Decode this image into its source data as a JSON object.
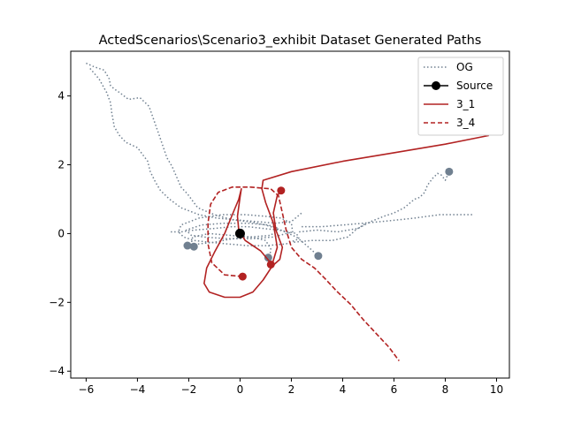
{
  "chart_data": {
    "type": "line",
    "title": "ActedScenarios\\Scenario3_exhibit Dataset Generated Paths",
    "xlabel": "",
    "ylabel": "",
    "xlim": [
      -6.6,
      10.5
    ],
    "ylim": [
      -4.2,
      5.3
    ],
    "xticks": [
      -6,
      -4,
      -2,
      0,
      2,
      4,
      6,
      8,
      10
    ],
    "yticks": [
      -4,
      -2,
      0,
      2,
      4
    ],
    "grid": false,
    "legend_position": "top-right",
    "colors": {
      "og": "#708090",
      "source": "#000000",
      "generated": "#b22222"
    },
    "series": [
      {
        "name": "OG",
        "style": "dotted",
        "paths": [
          [
            [
              -6.0,
              4.95
            ],
            [
              -5.7,
              4.85
            ],
            [
              -5.3,
              4.75
            ],
            [
              -5.1,
              4.5
            ],
            [
              -5.05,
              4.3
            ],
            [
              -4.9,
              4.2
            ],
            [
              -4.7,
              4.1
            ],
            [
              -4.35,
              3.9
            ],
            [
              -3.9,
              3.95
            ],
            [
              -3.55,
              3.7
            ],
            [
              -3.15,
              2.85
            ],
            [
              -2.85,
              2.2
            ],
            [
              -2.65,
              1.95
            ],
            [
              -2.3,
              1.35
            ],
            [
              -2.05,
              1.15
            ],
            [
              -1.65,
              0.75
            ],
            [
              -1.0,
              0.55
            ],
            [
              -0.3,
              0.4
            ],
            [
              0.3,
              0.35
            ],
            [
              1.0,
              0.25
            ],
            [
              1.6,
              0.1
            ],
            [
              2.2,
              -0.1
            ],
            [
              2.6,
              -0.35
            ],
            [
              3.05,
              -0.65
            ]
          ],
          [
            [
              -5.85,
              4.8
            ],
            [
              -5.5,
              4.5
            ],
            [
              -5.2,
              4.1
            ],
            [
              -5.05,
              3.8
            ],
            [
              -5.0,
              3.5
            ],
            [
              -4.9,
              3.1
            ],
            [
              -4.7,
              2.85
            ],
            [
              -4.45,
              2.65
            ],
            [
              -4.0,
              2.5
            ],
            [
              -3.6,
              2.1
            ],
            [
              -3.5,
              1.8
            ],
            [
              -3.3,
              1.5
            ],
            [
              -3.1,
              1.25
            ],
            [
              -2.75,
              1.0
            ],
            [
              -2.3,
              0.75
            ],
            [
              -1.6,
              0.55
            ],
            [
              -0.9,
              0.45
            ],
            [
              -0.2,
              0.4
            ],
            [
              0.6,
              0.35
            ],
            [
              1.4,
              0.3
            ],
            [
              2.0,
              0.35
            ],
            [
              2.4,
              0.6
            ]
          ],
          [
            [
              -2.7,
              0.05
            ],
            [
              -2.3,
              0.05
            ],
            [
              -1.8,
              0.1
            ],
            [
              -1.0,
              0.15
            ],
            [
              -0.3,
              0.2
            ],
            [
              0.3,
              0.2
            ],
            [
              0.9,
              0.15
            ],
            [
              1.5,
              0.1
            ],
            [
              1.9,
              0.05
            ],
            [
              2.2,
              0.0
            ],
            [
              2.3,
              -0.15
            ],
            [
              1.8,
              -0.3
            ],
            [
              1.0,
              -0.35
            ],
            [
              0.3,
              -0.35
            ],
            [
              -0.5,
              -0.3
            ],
            [
              -1.2,
              -0.25
            ],
            [
              -1.8,
              -0.2
            ],
            [
              -2.2,
              -0.1
            ],
            [
              -2.4,
              0.05
            ],
            [
              -2.3,
              0.25
            ],
            [
              -1.6,
              0.45
            ],
            [
              -0.7,
              0.55
            ],
            [
              0.2,
              0.55
            ],
            [
              1.0,
              0.5
            ],
            [
              1.6,
              0.45
            ],
            [
              2.0,
              0.3
            ],
            [
              2.05,
              0.05
            ],
            [
              1.3,
              -0.1
            ],
            [
              0.4,
              -0.15
            ],
            [
              -0.5,
              -0.15
            ],
            [
              -1.4,
              -0.1
            ],
            [
              -1.9,
              -0.05
            ],
            [
              -2.1,
              0.1
            ],
            [
              -1.5,
              0.25
            ],
            [
              -0.6,
              0.3
            ],
            [
              0.3,
              0.3
            ],
            [
              1.1,
              0.25
            ],
            [
              1.5,
              0.15
            ],
            [
              1.2,
              -0.05
            ],
            [
              0.4,
              -0.1
            ],
            [
              -0.4,
              -0.05
            ],
            [
              -1.2,
              0.0
            ],
            [
              -1.85,
              -0.1
            ],
            [
              -1.9,
              -0.3
            ],
            [
              -1.8,
              -0.38
            ]
          ],
          [
            [
              -2.05,
              -0.35
            ],
            [
              -1.6,
              -0.3
            ],
            [
              -1.0,
              -0.25
            ],
            [
              -0.3,
              -0.15
            ],
            [
              0.4,
              -0.1
            ],
            [
              1.0,
              -0.2
            ],
            [
              1.2,
              -0.45
            ],
            [
              1.15,
              -0.7
            ]
          ],
          [
            [
              2.3,
              0.05
            ],
            [
              3.0,
              0.1
            ],
            [
              3.8,
              0.05
            ],
            [
              4.6,
              0.15
            ],
            [
              5.1,
              0.35
            ],
            [
              5.6,
              0.5
            ],
            [
              6.0,
              0.6
            ],
            [
              6.4,
              0.75
            ],
            [
              6.8,
              1.0
            ],
            [
              7.0,
              1.05
            ],
            [
              7.2,
              1.2
            ],
            [
              7.3,
              1.4
            ],
            [
              7.5,
              1.6
            ],
            [
              7.7,
              1.75
            ],
            [
              7.85,
              1.7
            ],
            [
              8.0,
              1.55
            ],
            [
              8.15,
              1.8
            ]
          ],
          [
            [
              2.4,
              0.2
            ],
            [
              3.2,
              0.2
            ],
            [
              4.0,
              0.25
            ],
            [
              4.8,
              0.3
            ],
            [
              5.5,
              0.35
            ],
            [
              6.2,
              0.4
            ],
            [
              6.8,
              0.45
            ],
            [
              7.3,
              0.5
            ],
            [
              7.8,
              0.55
            ],
            [
              8.4,
              0.55
            ],
            [
              9.1,
              0.55
            ]
          ],
          [
            [
              2.1,
              -0.25
            ],
            [
              2.8,
              -0.2
            ],
            [
              3.6,
              -0.2
            ],
            [
              4.2,
              -0.1
            ],
            [
              4.5,
              0.1
            ],
            [
              4.9,
              0.3
            ]
          ]
        ],
        "endpoints": [
          [
            -2.05,
            -0.35
          ],
          [
            -1.8,
            -0.38
          ],
          [
            1.1,
            -0.7
          ],
          [
            3.05,
            -0.65
          ],
          [
            8.15,
            1.8
          ]
        ]
      },
      {
        "name": "Source",
        "style": "marker",
        "point": [
          0.0,
          0.0
        ]
      },
      {
        "name": "3_1",
        "style": "solid",
        "path": [
          [
            1.6,
            1.25
          ],
          [
            1.45,
            1.1
          ],
          [
            1.3,
            0.6
          ],
          [
            1.4,
            0.1
          ],
          [
            1.65,
            -0.4
          ],
          [
            1.55,
            -0.75
          ],
          [
            1.25,
            -0.95
          ],
          [
            0.9,
            -1.35
          ],
          [
            0.5,
            -1.7
          ],
          [
            0.0,
            -1.85
          ],
          [
            -0.6,
            -1.85
          ],
          [
            -1.2,
            -1.7
          ],
          [
            -1.4,
            -1.45
          ],
          [
            -1.3,
            -1.0
          ],
          [
            -1.0,
            -0.55
          ],
          [
            -0.6,
            0.0
          ],
          [
            -0.3,
            0.55
          ],
          [
            -0.05,
            1.0
          ],
          [
            0.05,
            1.3
          ],
          [
            0.0,
            1.05
          ],
          [
            -0.1,
            0.5
          ],
          [
            -0.05,
            0.1
          ],
          [
            0.2,
            -0.2
          ],
          [
            0.8,
            -0.5
          ],
          [
            1.25,
            -0.9
          ],
          [
            1.45,
            -0.4
          ],
          [
            1.3,
            0.3
          ],
          [
            1.0,
            0.9
          ],
          [
            0.85,
            1.3
          ],
          [
            0.9,
            1.55
          ],
          [
            2.0,
            1.8
          ],
          [
            4.0,
            2.1
          ],
          [
            6.0,
            2.35
          ],
          [
            8.0,
            2.6
          ],
          [
            9.7,
            2.85
          ]
        ],
        "markers": [
          [
            1.6,
            1.25
          ],
          [
            1.2,
            -0.9
          ]
        ]
      },
      {
        "name": "3_4",
        "style": "dashed",
        "path": [
          [
            0.1,
            -1.25
          ],
          [
            -0.6,
            -1.2
          ],
          [
            -1.1,
            -0.85
          ],
          [
            -1.25,
            -0.3
          ],
          [
            -1.25,
            0.3
          ],
          [
            -1.15,
            0.85
          ],
          [
            -0.85,
            1.2
          ],
          [
            -0.3,
            1.35
          ],
          [
            0.4,
            1.35
          ],
          [
            1.2,
            1.3
          ],
          [
            1.5,
            1.1
          ],
          [
            1.65,
            0.6
          ],
          [
            1.8,
            0.1
          ],
          [
            2.0,
            -0.4
          ],
          [
            2.4,
            -0.75
          ],
          [
            2.9,
            -1.0
          ],
          [
            3.3,
            -1.3
          ],
          [
            3.8,
            -1.7
          ],
          [
            4.3,
            -2.05
          ],
          [
            4.8,
            -2.5
          ],
          [
            5.3,
            -2.9
          ],
          [
            5.8,
            -3.3
          ],
          [
            6.2,
            -3.7
          ]
        ],
        "markers": [
          [
            0.1,
            -1.25
          ]
        ]
      }
    ]
  },
  "legend": {
    "items": [
      {
        "label": "OG"
      },
      {
        "label": "Source"
      },
      {
        "label": "3_1"
      },
      {
        "label": "3_4"
      }
    ]
  }
}
